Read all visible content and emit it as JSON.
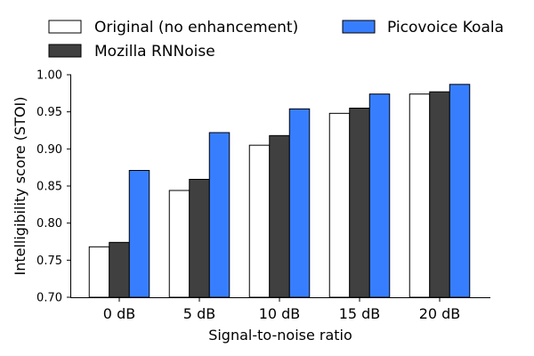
{
  "chart_data": {
    "type": "bar",
    "title": "",
    "xlabel": "Signal-to-noise ratio",
    "ylabel": "Intelligibility score (STOI)",
    "categories": [
      "0 dB",
      "5 dB",
      "10 dB",
      "15 dB",
      "20 dB"
    ],
    "ylim": [
      0.7,
      1.0
    ],
    "yticks": [
      "0.70",
      "0.75",
      "0.80",
      "0.85",
      "0.90",
      "0.95",
      "1.00"
    ],
    "legend_position": "top",
    "series": [
      {
        "name": "Original (no enhancement)",
        "color": "#ffffff",
        "values": [
          0.768,
          0.844,
          0.905,
          0.948,
          0.974
        ]
      },
      {
        "name": "Mozilla RNNoise",
        "color": "#404040",
        "values": [
          0.774,
          0.859,
          0.918,
          0.955,
          0.977
        ]
      },
      {
        "name": "Picovoice Koala",
        "color": "#377eff",
        "values": [
          0.871,
          0.922,
          0.954,
          0.974,
          0.987
        ]
      }
    ]
  }
}
